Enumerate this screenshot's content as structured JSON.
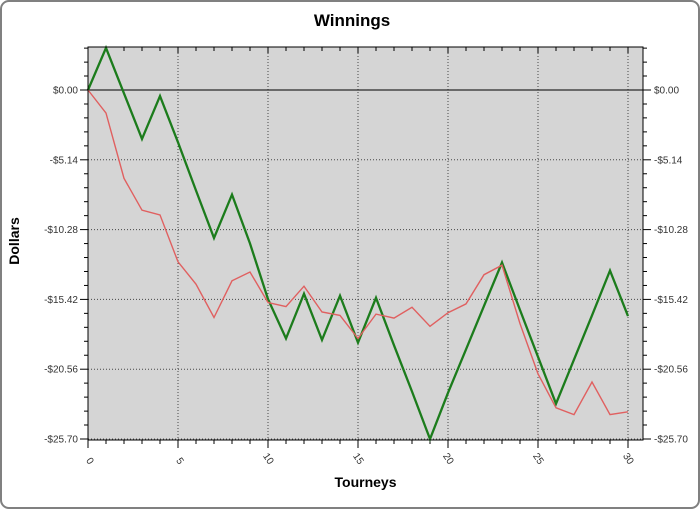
{
  "chart_data": {
    "type": "line",
    "title": "Winnings",
    "xlabel": "Tourneys",
    "ylabel": "Dollars",
    "x": [
      0,
      1,
      2,
      3,
      4,
      5,
      6,
      7,
      8,
      9,
      10,
      11,
      12,
      13,
      14,
      15,
      16,
      17,
      18,
      19,
      20,
      21,
      22,
      23,
      24,
      25,
      26,
      27,
      28,
      29,
      30
    ],
    "series": [
      {
        "name": "green-line",
        "color": "#1c7c1c",
        "width": 2.3,
        "values": [
          0,
          3.1,
          -0.25,
          -3.6,
          -0.45,
          -3.85,
          -7.4,
          -10.9,
          -7.7,
          -11.3,
          -15.4,
          -18.3,
          -15.0,
          -18.4,
          -15.15,
          -18.6,
          -15.3,
          -18.8,
          -22.2,
          -25.7,
          -22.3,
          -19.1,
          -15.9,
          -12.7,
          -16.2,
          -19.65,
          -23.1,
          -19.85,
          -16.6,
          -13.3,
          -16.65
        ]
      },
      {
        "name": "red-line",
        "color": "#e06060",
        "width": 1.4,
        "values": [
          0,
          -1.7,
          -6.5,
          -8.85,
          -9.2,
          -12.65,
          -14.3,
          -16.75,
          -14.05,
          -13.4,
          -15.65,
          -15.95,
          -14.45,
          -16.35,
          -16.6,
          -18.3,
          -16.5,
          -16.8,
          -16.0,
          -17.4,
          -16.4,
          -15.75,
          -13.6,
          -12.9,
          -17.2,
          -20.9,
          -23.4,
          -23.9,
          -21.5,
          -23.9,
          -23.7
        ]
      }
    ],
    "y_ticks": [
      {
        "label": "$0.00",
        "value": 0
      },
      {
        "label": "-$5.14",
        "value": -5.14
      },
      {
        "label": "-$10.28",
        "value": -10.28
      },
      {
        "label": "-$15.42",
        "value": -15.42
      },
      {
        "label": "-$20.56",
        "value": -20.56
      },
      {
        "label": "-$25.70",
        "value": -25.7
      }
    ],
    "y_minor_step": 1.028,
    "x_ticks_major": [
      {
        "label": "0",
        "value": 0
      },
      {
        "label": "5",
        "value": 5
      },
      {
        "label": "10",
        "value": 10
      },
      {
        "label": "15",
        "value": 15
      },
      {
        "label": "20",
        "value": 20
      },
      {
        "label": "25",
        "value": 25
      },
      {
        "label": "30",
        "value": 30
      }
    ],
    "x_minor_step": 1,
    "xlim": [
      0,
      30.8
    ],
    "ylim": [
      -25.7,
      3.17
    ],
    "grid": "dotted major gridlines; solid line at $0.00",
    "legend": "none",
    "colors": {
      "plot_bg": "#d5d5d5",
      "grid": "#474747",
      "zero_line": "#2a2a2a",
      "axis": "#000000",
      "tick_label": "#333333"
    }
  }
}
